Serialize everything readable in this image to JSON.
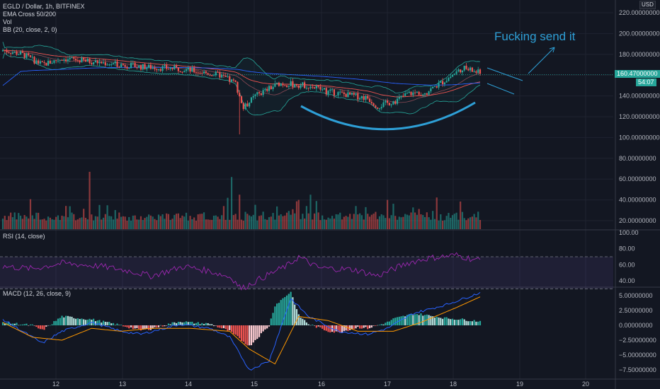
{
  "header": {
    "symbol_line": "EGLD / Dollar, 1h, BITFINEX",
    "indicator_1": "EMA Cross 50/200",
    "indicator_2": "Vol",
    "indicator_3": "BB (20, close, 2, 0)",
    "currency": "USD"
  },
  "annotation": {
    "text": "Fucking send it"
  },
  "last_price": {
    "value": "160.47000000",
    "countdown": "54:07"
  },
  "rsi_pane": {
    "title": "RSI (14, close)",
    "ticks": [
      "100.00",
      "80.00",
      "60.00",
      "40.00"
    ]
  },
  "macd_pane": {
    "title": "MACD (12, 26, close, 9)",
    "ticks": [
      "5.00000000",
      "2.50000000",
      "0.00000000",
      "−2.50000000",
      "−5.00000000",
      "−7.50000000"
    ]
  },
  "colors": {
    "up": "#26a69a",
    "down": "#ef5350",
    "bb": "#26a69a",
    "ema50": "#ef5350",
    "ema200": "#2962ff",
    "rsi": "#9c27b0",
    "macd": "#2962ff",
    "signal": "#ff9800",
    "annotation": "#2e9fd6"
  },
  "chart_data": {
    "type": "candlestick",
    "price_axis": {
      "ticks": [
        "220.00000000",
        "200.00000000",
        "180.00000000",
        "160.00000000",
        "140.00000000",
        "120.00000000",
        "100.00000000",
        "80.00000000",
        "60.00000000",
        "40.00000000",
        "20.00000000"
      ],
      "ylim": [
        10,
        224
      ]
    },
    "x_ticks": [
      "12",
      "13",
      "14",
      "15",
      "16",
      "17",
      "18",
      "19",
      "20"
    ],
    "price_close_keypoints": [
      [
        0,
        184
      ],
      [
        10,
        180
      ],
      [
        20,
        170
      ],
      [
        30,
        176
      ],
      [
        50,
        172
      ],
      [
        70,
        168
      ],
      [
        90,
        166
      ],
      [
        110,
        160
      ],
      [
        118,
        152
      ],
      [
        122,
        128
      ],
      [
        128,
        140
      ],
      [
        140,
        152
      ],
      [
        155,
        150
      ],
      [
        165,
        144
      ],
      [
        185,
        138
      ],
      [
        190,
        130
      ],
      [
        200,
        136
      ],
      [
        205,
        142
      ],
      [
        215,
        144
      ],
      [
        225,
        156
      ],
      [
        233,
        167
      ],
      [
        242,
        162
      ]
    ],
    "rsi_keypoints": [
      [
        0,
        58
      ],
      [
        15,
        55
      ],
      [
        30,
        62
      ],
      [
        50,
        58
      ],
      [
        65,
        52
      ],
      [
        75,
        46
      ],
      [
        92,
        58
      ],
      [
        105,
        52
      ],
      [
        116,
        44
      ],
      [
        121,
        30
      ],
      [
        130,
        42
      ],
      [
        145,
        60
      ],
      [
        150,
        70
      ],
      [
        160,
        56
      ],
      [
        178,
        54
      ],
      [
        190,
        46
      ],
      [
        205,
        62
      ],
      [
        215,
        68
      ],
      [
        230,
        72
      ],
      [
        240,
        66
      ]
    ],
    "macd_keypoints": [
      [
        0,
        1
      ],
      [
        10,
        -1
      ],
      [
        20,
        -3
      ],
      [
        30,
        -1
      ],
      [
        45,
        0.5
      ],
      [
        60,
        -1
      ],
      [
        70,
        -1.5
      ],
      [
        90,
        0.2
      ],
      [
        105,
        -0.5
      ],
      [
        115,
        -2
      ],
      [
        125,
        -7.5
      ],
      [
        135,
        -6
      ],
      [
        146,
        4.5
      ],
      [
        155,
        1.5
      ],
      [
        170,
        -1
      ],
      [
        185,
        -1.5
      ],
      [
        195,
        -0.5
      ],
      [
        208,
        2
      ],
      [
        225,
        3.5
      ],
      [
        242,
        5.5
      ]
    ],
    "signal_keypoints": [
      [
        0,
        0.5
      ],
      [
        15,
        -2
      ],
      [
        30,
        -2.5
      ],
      [
        45,
        -0.5
      ],
      [
        60,
        -1
      ],
      [
        75,
        -0.5
      ],
      [
        95,
        -0.5
      ],
      [
        115,
        -1
      ],
      [
        125,
        -4
      ],
      [
        138,
        -6.5
      ],
      [
        150,
        1.5
      ],
      [
        165,
        0.8
      ],
      [
        180,
        -1
      ],
      [
        198,
        -1
      ],
      [
        212,
        0.5
      ],
      [
        230,
        3
      ],
      [
        242,
        4.8
      ]
    ]
  }
}
